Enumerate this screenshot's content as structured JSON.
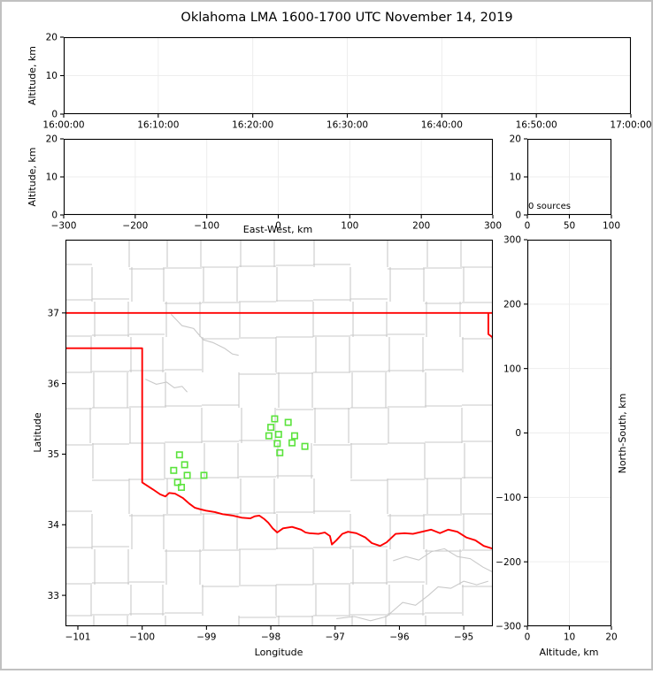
{
  "title": "Oklahoma LMA 1600-1700 UTC November 14, 2019",
  "colors": {
    "axis": "#000000",
    "grid": "#ededed",
    "county": "#c9c9c9",
    "state_border": "#ff0000",
    "source_marker": "#5be33c",
    "frame": "#c1c1c1"
  },
  "chart_data": [
    {
      "id": "time_height",
      "type": "scatter",
      "xlabel": "",
      "ylabel": "Altitude, km",
      "xlim": [
        0,
        3600
      ],
      "ylim": [
        0,
        20
      ],
      "xtick_values": [
        0,
        600,
        1200,
        1800,
        2400,
        3000,
        3600
      ],
      "xtick_labels": [
        "16:00:00",
        "16:10:00",
        "16:20:00",
        "16:30:00",
        "16:40:00",
        "16:50:00",
        "17:00:00"
      ],
      "ytick_values": [
        0,
        10,
        20
      ],
      "ytick_labels": [
        "0",
        "10",
        "20"
      ],
      "grid_x": [
        600,
        1200,
        1800,
        2400,
        3000
      ],
      "grid_y": [
        10
      ],
      "points": []
    },
    {
      "id": "eastwest_height",
      "type": "scatter",
      "xlabel": "East-West, km",
      "ylabel": "Altitude, km",
      "xlim": [
        -300,
        300
      ],
      "ylim": [
        0,
        20
      ],
      "xtick_values": [
        -300,
        -200,
        -100,
        0,
        100,
        200,
        300
      ],
      "xtick_labels": [
        "−300",
        "−200",
        "−100",
        "0",
        "100",
        "200",
        "300"
      ],
      "ytick_values": [
        0,
        10,
        20
      ],
      "ytick_labels": [
        "0",
        "10",
        "20"
      ],
      "grid_x": [
        -200,
        -100,
        0,
        100,
        200
      ],
      "grid_y": [
        10
      ],
      "points": []
    },
    {
      "id": "altitude_histogram",
      "type": "line",
      "annotation": "0 sources",
      "xlabel": "",
      "ylabel": "",
      "xlim": [
        0,
        100
      ],
      "ylim": [
        0,
        20
      ],
      "xtick_values": [
        0,
        50,
        100
      ],
      "xtick_labels": [
        "0",
        "50",
        "100"
      ],
      "ytick_values": [
        0,
        10,
        20
      ],
      "ytick_labels": [
        "0",
        "10",
        "20"
      ],
      "grid_x": [
        50
      ],
      "grid_y": [
        10
      ],
      "values": []
    },
    {
      "id": "plan_view_map",
      "type": "scatter",
      "xlabel": "Longitude",
      "ylabel": "Latitude",
      "xlim": [
        -101.1926,
        -94.5479
      ],
      "ylim": [
        32.5625,
        38.0375
      ],
      "xtick_values": [
        -101,
        -100,
        -99,
        -98,
        -97,
        -96,
        -95
      ],
      "xtick_labels": [
        "−101",
        "−100",
        "−99",
        "−98",
        "−97",
        "−96",
        "−95"
      ],
      "ytick_values": [
        33,
        34,
        35,
        36,
        37
      ],
      "ytick_labels": [
        "33",
        "34",
        "35",
        "36",
        "37"
      ],
      "grid_x": [],
      "grid_y": [],
      "marker": "open-square",
      "points": [
        [
          -97.94,
          35.5
        ],
        [
          -97.73,
          35.45
        ],
        [
          -98.0,
          35.38
        ],
        [
          -97.88,
          35.28
        ],
        [
          -98.03,
          35.26
        ],
        [
          -97.63,
          35.26
        ],
        [
          -97.9,
          35.15
        ],
        [
          -97.67,
          35.16
        ],
        [
          -97.47,
          35.11
        ],
        [
          -97.86,
          35.02
        ],
        [
          -99.42,
          34.99
        ],
        [
          -99.34,
          34.85
        ],
        [
          -99.51,
          34.77
        ],
        [
          -99.3,
          34.7
        ],
        [
          -99.04,
          34.7
        ],
        [
          -99.45,
          34.6
        ],
        [
          -99.39,
          34.53
        ]
      ],
      "state_border": [
        [
          [
            -101.1926,
            37.0
          ],
          [
            -94.5479,
            37.0
          ]
        ],
        [
          [
            -94.618,
            37.0
          ],
          [
            -94.618,
            36.7
          ],
          [
            -94.561,
            36.66
          ],
          [
            -94.5479,
            36.64
          ]
        ],
        [
          [
            -101.1926,
            36.5
          ],
          [
            -100.0,
            36.5
          ],
          [
            -100.0,
            34.6
          ],
          [
            -99.83,
            34.5
          ],
          [
            -99.72,
            34.43
          ],
          [
            -99.64,
            34.4
          ],
          [
            -99.58,
            34.45
          ],
          [
            -99.49,
            34.44
          ],
          [
            -99.37,
            34.38
          ],
          [
            -99.27,
            34.3
          ],
          [
            -99.18,
            34.24
          ],
          [
            -99.1,
            34.22
          ],
          [
            -99.01,
            34.2
          ],
          [
            -98.87,
            34.18
          ],
          [
            -98.75,
            34.15
          ],
          [
            -98.59,
            34.13
          ],
          [
            -98.45,
            34.1
          ],
          [
            -98.32,
            34.09
          ],
          [
            -98.25,
            34.12
          ],
          [
            -98.18,
            34.13
          ],
          [
            -98.1,
            34.08
          ],
          [
            -98.04,
            34.03
          ],
          [
            -97.97,
            33.95
          ],
          [
            -97.9,
            33.89
          ],
          [
            -97.81,
            33.95
          ],
          [
            -97.67,
            33.97
          ],
          [
            -97.53,
            33.93
          ],
          [
            -97.46,
            33.89
          ],
          [
            -97.4,
            33.88
          ],
          [
            -97.26,
            33.87
          ],
          [
            -97.16,
            33.89
          ],
          [
            -97.08,
            33.84
          ],
          [
            -97.05,
            33.72
          ],
          [
            -96.98,
            33.78
          ],
          [
            -96.89,
            33.87
          ],
          [
            -96.8,
            33.9
          ],
          [
            -96.67,
            33.88
          ],
          [
            -96.53,
            33.82
          ],
          [
            -96.43,
            33.74
          ],
          [
            -96.3,
            33.7
          ],
          [
            -96.2,
            33.75
          ],
          [
            -96.06,
            33.87
          ],
          [
            -95.92,
            33.88
          ],
          [
            -95.79,
            33.87
          ],
          [
            -95.65,
            33.9
          ],
          [
            -95.51,
            33.93
          ],
          [
            -95.37,
            33.88
          ],
          [
            -95.24,
            33.93
          ],
          [
            -95.1,
            33.9
          ],
          [
            -94.96,
            33.82
          ],
          [
            -94.82,
            33.78
          ],
          [
            -94.69,
            33.7
          ],
          [
            -94.5479,
            33.66
          ]
        ]
      ],
      "county_grid": {
        "cols": [
          30,
          72,
          112,
          154,
          196,
          238,
          280,
          322,
          364,
          406,
          448
        ],
        "rows": [
          31,
          70,
          110,
          150,
          190,
          230,
          270,
          310,
          350,
          390,
          425
        ]
      },
      "rivers": [
        [
          [
            -99.55,
            36.98
          ],
          [
            -99.38,
            36.82
          ],
          [
            -99.2,
            36.78
          ],
          [
            -99.05,
            36.62
          ],
          [
            -98.9,
            36.58
          ],
          [
            -98.72,
            36.5
          ],
          [
            -98.6,
            36.42
          ],
          [
            -98.5,
            36.4
          ]
        ],
        [
          [
            -99.95,
            36.06
          ],
          [
            -99.78,
            35.99
          ],
          [
            -99.62,
            36.02
          ],
          [
            -99.5,
            35.94
          ],
          [
            -99.38,
            35.96
          ],
          [
            -99.3,
            35.88
          ]
        ],
        [
          [
            -96.1,
            33.49
          ],
          [
            -95.9,
            33.55
          ],
          [
            -95.7,
            33.5
          ],
          [
            -95.5,
            33.62
          ],
          [
            -95.3,
            33.66
          ],
          [
            -95.1,
            33.55
          ],
          [
            -94.9,
            33.52
          ],
          [
            -94.7,
            33.4
          ],
          [
            -94.5479,
            33.33
          ]
        ],
        [
          [
            -96.98,
            32.67
          ],
          [
            -96.7,
            32.7
          ],
          [
            -96.45,
            32.64
          ],
          [
            -96.2,
            32.7
          ],
          [
            -95.95,
            32.9
          ],
          [
            -95.75,
            32.86
          ],
          [
            -95.55,
            33.0
          ],
          [
            -95.4,
            33.12
          ],
          [
            -95.2,
            33.1
          ],
          [
            -95.0,
            33.2
          ],
          [
            -94.8,
            33.15
          ],
          [
            -94.62,
            33.2
          ]
        ]
      ]
    },
    {
      "id": "northsouth_height",
      "type": "scatter",
      "xlabel": "Altitude, km",
      "ylabel": "North-South, km",
      "xlim": [
        0,
        20
      ],
      "ylim": [
        -300,
        300
      ],
      "xtick_values": [
        0,
        10,
        20
      ],
      "xtick_labels": [
        "0",
        "10",
        "20"
      ],
      "ytick_values": [
        -300,
        -200,
        -100,
        0,
        100,
        200,
        300
      ],
      "ytick_labels": [
        "−300",
        "−200",
        "−100",
        "0",
        "100",
        "200",
        "300"
      ],
      "grid_x": [
        10
      ],
      "grid_y": [
        -200,
        -100,
        0,
        100,
        200
      ],
      "points": []
    }
  ]
}
